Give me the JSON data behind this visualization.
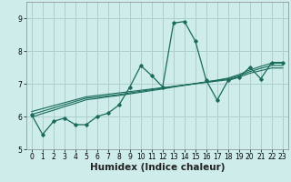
{
  "xlabel": "Humidex (Indice chaleur)",
  "bg_color": "#cdecea",
  "grid_color": "#aacfcc",
  "line_color": "#1a6b5a",
  "x_data": [
    0,
    1,
    2,
    3,
    4,
    5,
    6,
    7,
    8,
    9,
    10,
    11,
    12,
    13,
    14,
    15,
    16,
    17,
    18,
    19,
    20,
    21,
    22,
    23
  ],
  "y_main": [
    6.05,
    5.45,
    5.85,
    5.95,
    5.75,
    5.75,
    6.0,
    6.1,
    6.35,
    6.9,
    7.55,
    7.25,
    6.9,
    8.85,
    8.9,
    8.3,
    7.1,
    6.5,
    7.1,
    7.2,
    7.5,
    7.15,
    7.65,
    7.65
  ],
  "y_reg1": [
    5.98,
    6.09,
    6.19,
    6.3,
    6.4,
    6.51,
    6.55,
    6.6,
    6.64,
    6.69,
    6.74,
    6.79,
    6.84,
    6.9,
    6.95,
    7.0,
    7.06,
    7.11,
    7.17,
    7.28,
    7.42,
    7.53,
    7.63,
    7.63
  ],
  "y_reg2": [
    6.15,
    6.24,
    6.33,
    6.42,
    6.51,
    6.6,
    6.64,
    6.68,
    6.72,
    6.76,
    6.8,
    6.84,
    6.88,
    6.92,
    6.96,
    7.0,
    7.04,
    7.08,
    7.12,
    7.2,
    7.32,
    7.4,
    7.48,
    7.48
  ],
  "y_reg3": [
    6.06,
    6.16,
    6.26,
    6.36,
    6.46,
    6.56,
    6.59,
    6.63,
    6.67,
    6.72,
    6.77,
    6.82,
    6.86,
    6.91,
    6.96,
    7.01,
    7.05,
    7.1,
    7.15,
    7.24,
    7.37,
    7.47,
    7.56,
    7.56
  ],
  "xlim": [
    -0.5,
    23.5
  ],
  "ylim": [
    5.0,
    9.5
  ],
  "yticks": [
    5,
    6,
    7,
    8,
    9
  ],
  "xticks": [
    0,
    1,
    2,
    3,
    4,
    5,
    6,
    7,
    8,
    9,
    10,
    11,
    12,
    13,
    14,
    15,
    16,
    17,
    18,
    19,
    20,
    21,
    22,
    23
  ],
  "tick_fontsize": 5.5,
  "xlabel_fontsize": 7.5
}
